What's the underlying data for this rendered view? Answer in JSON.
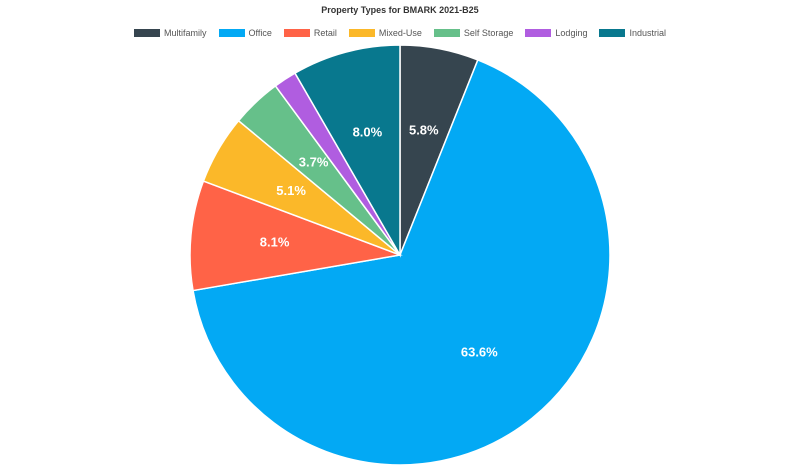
{
  "chart_data": {
    "type": "pie",
    "title": "Property Types for BMARK 2021-B25",
    "legend_position": "top",
    "slices": [
      {
        "name": "Multifamily",
        "value": 5.8,
        "label": "5.8%",
        "color": "#36454f"
      },
      {
        "name": "Office",
        "value": 63.6,
        "label": "63.6%",
        "color": "#03a9f4"
      },
      {
        "name": "Retail",
        "value": 8.1,
        "label": "8.1%",
        "color": "#ff6347"
      },
      {
        "name": "Mixed-Use",
        "value": 5.1,
        "label": "5.1%",
        "color": "#fbb829"
      },
      {
        "name": "Self Storage",
        "value": 3.7,
        "label": "3.7%",
        "color": "#66c08a"
      },
      {
        "name": "Lodging",
        "value": 1.7,
        "label": "",
        "color": "#b05de0"
      },
      {
        "name": "Industrial",
        "value": 8.0,
        "label": "8.0%",
        "color": "#08788e"
      }
    ]
  }
}
